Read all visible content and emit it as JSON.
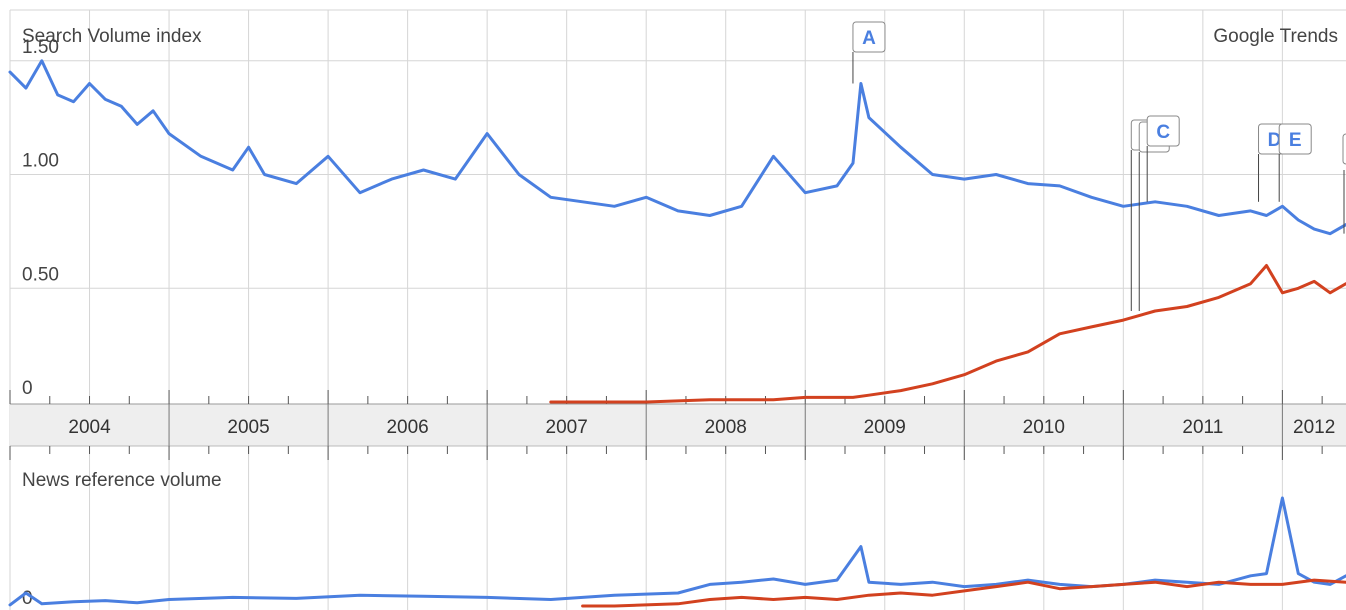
{
  "header": {
    "y_title": "Search Volume index",
    "brand": "Google Trends",
    "news_title": "News reference volume"
  },
  "colors": {
    "blue": "#4a7fe0",
    "red": "#d2411f",
    "grid": "#d6d6d6",
    "band": "#eeeeee",
    "flag_border": "#888888"
  },
  "chart_data": [
    {
      "type": "line",
      "title": "Search Volume index",
      "ylabel": "Search Volume index",
      "yticks": [
        0,
        0.5,
        1.0,
        1.5
      ],
      "ytick_labels": [
        "0",
        "0.50",
        "1.00",
        "1.50"
      ],
      "ylim": [
        0,
        1.6
      ],
      "x_years": [
        "2004",
        "2005",
        "2006",
        "2007",
        "2008",
        "2009",
        "2010",
        "2011",
        "2012"
      ],
      "x_range": [
        2004.0,
        2012.4
      ],
      "grid": true,
      "series": [
        {
          "color": "blue",
          "x": [
            2004.0,
            2004.1,
            2004.2,
            2004.3,
            2004.4,
            2004.5,
            2004.6,
            2004.7,
            2004.8,
            2004.9,
            2005.0,
            2005.2,
            2005.4,
            2005.5,
            2005.6,
            2005.8,
            2006.0,
            2006.2,
            2006.4,
            2006.6,
            2006.8,
            2007.0,
            2007.2,
            2007.4,
            2007.6,
            2007.8,
            2008.0,
            2008.2,
            2008.4,
            2008.6,
            2008.8,
            2009.0,
            2009.2,
            2009.3,
            2009.35,
            2009.4,
            2009.6,
            2009.8,
            2010.0,
            2010.2,
            2010.4,
            2010.6,
            2010.8,
            2011.0,
            2011.2,
            2011.4,
            2011.6,
            2011.8,
            2011.9,
            2012.0,
            2012.1,
            2012.2,
            2012.3,
            2012.4
          ],
          "y": [
            1.45,
            1.38,
            1.5,
            1.35,
            1.32,
            1.4,
            1.33,
            1.3,
            1.22,
            1.28,
            1.18,
            1.08,
            1.02,
            1.12,
            1.0,
            0.96,
            1.08,
            0.92,
            0.98,
            1.02,
            0.98,
            1.18,
            1.0,
            0.9,
            0.88,
            0.86,
            0.9,
            0.84,
            0.82,
            0.86,
            1.08,
            0.92,
            0.95,
            1.05,
            1.4,
            1.25,
            1.12,
            1.0,
            0.98,
            1.0,
            0.96,
            0.95,
            0.9,
            0.86,
            0.88,
            0.86,
            0.82,
            0.84,
            0.82,
            0.86,
            0.8,
            0.76,
            0.74,
            0.78
          ]
        },
        {
          "color": "red",
          "x": [
            2007.4,
            2007.8,
            2008.0,
            2008.4,
            2008.8,
            2009.0,
            2009.3,
            2009.4,
            2009.6,
            2009.8,
            2010.0,
            2010.2,
            2010.4,
            2010.6,
            2010.8,
            2011.0,
            2011.2,
            2011.4,
            2011.6,
            2011.8,
            2011.9,
            2012.0,
            2012.1,
            2012.2,
            2012.3,
            2012.4
          ],
          "y": [
            0.0,
            0.0,
            0.0,
            0.01,
            0.01,
            0.02,
            0.02,
            0.03,
            0.05,
            0.08,
            0.12,
            0.18,
            0.22,
            0.3,
            0.33,
            0.36,
            0.4,
            0.42,
            0.46,
            0.52,
            0.6,
            0.48,
            0.5,
            0.53,
            0.48,
            0.52
          ]
        }
      ],
      "annotations": [
        "A",
        "C",
        "D",
        "E"
      ]
    },
    {
      "type": "line",
      "title": "News reference volume",
      "ytick_labels": [
        "0"
      ],
      "ylim": [
        0,
        1.0
      ],
      "x_range": [
        2004.0,
        2012.4
      ],
      "series": [
        {
          "color": "blue",
          "x": [
            2004.0,
            2004.1,
            2004.2,
            2004.4,
            2004.6,
            2004.8,
            2005.0,
            2005.4,
            2005.8,
            2006.2,
            2006.6,
            2007.0,
            2007.4,
            2007.8,
            2008.2,
            2008.4,
            2008.6,
            2008.8,
            2009.0,
            2009.2,
            2009.35,
            2009.4,
            2009.6,
            2009.8,
            2010.0,
            2010.2,
            2010.4,
            2010.6,
            2010.8,
            2011.0,
            2011.2,
            2011.4,
            2011.6,
            2011.8,
            2011.9,
            2012.0,
            2012.1,
            2012.2,
            2012.3,
            2012.4
          ],
          "y": [
            0.01,
            0.12,
            0.02,
            0.04,
            0.05,
            0.03,
            0.06,
            0.08,
            0.07,
            0.1,
            0.09,
            0.08,
            0.06,
            0.1,
            0.12,
            0.2,
            0.22,
            0.25,
            0.2,
            0.24,
            0.55,
            0.22,
            0.2,
            0.22,
            0.18,
            0.2,
            0.24,
            0.2,
            0.18,
            0.2,
            0.24,
            0.22,
            0.2,
            0.28,
            0.3,
            1.0,
            0.3,
            0.22,
            0.2,
            0.28
          ]
        },
        {
          "color": "red",
          "x": [
            2007.6,
            2007.8,
            2008.2,
            2008.4,
            2008.6,
            2008.8,
            2009.0,
            2009.2,
            2009.4,
            2009.6,
            2009.8,
            2010.0,
            2010.2,
            2010.4,
            2010.6,
            2010.8,
            2011.0,
            2011.2,
            2011.4,
            2011.6,
            2011.8,
            2012.0,
            2012.2,
            2012.4
          ],
          "y": [
            0.0,
            0.0,
            0.02,
            0.06,
            0.08,
            0.06,
            0.08,
            0.06,
            0.1,
            0.12,
            0.1,
            0.14,
            0.18,
            0.22,
            0.16,
            0.18,
            0.2,
            0.22,
            0.18,
            0.22,
            0.2,
            0.2,
            0.24,
            0.22
          ]
        }
      ]
    }
  ]
}
